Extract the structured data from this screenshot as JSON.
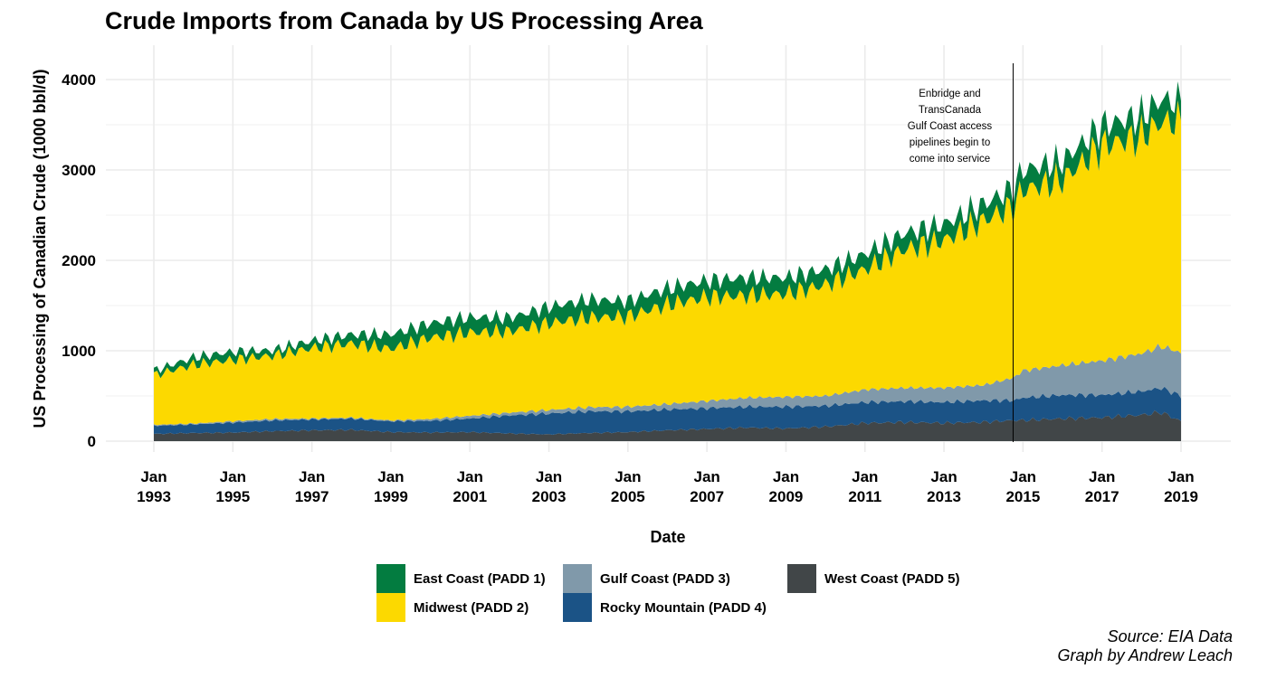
{
  "title": "Crude Imports from Canada by US Processing Area",
  "caption": {
    "line1": "Source: EIA Data",
    "line2": "Graph by Andrew Leach"
  },
  "chart_data": {
    "type": "area",
    "stacked": true,
    "xlabel": "Date",
    "ylabel": "US Processing of Canadian Crude (1000 bbl/d)",
    "xlim": [
      1993.0,
      2019.0
    ],
    "ylim": [
      0,
      4200
    ],
    "y_ticks": [
      0,
      1000,
      2000,
      3000,
      4000
    ],
    "x_ticks": [
      {
        "value": 1993,
        "label_top": "Jan",
        "label_bottom": "1993"
      },
      {
        "value": 1995,
        "label_top": "Jan",
        "label_bottom": "1995"
      },
      {
        "value": 1997,
        "label_top": "Jan",
        "label_bottom": "1997"
      },
      {
        "value": 1999,
        "label_top": "Jan",
        "label_bottom": "1999"
      },
      {
        "value": 2001,
        "label_top": "Jan",
        "label_bottom": "2001"
      },
      {
        "value": 2003,
        "label_top": "Jan",
        "label_bottom": "2003"
      },
      {
        "value": 2005,
        "label_top": "Jan",
        "label_bottom": "2005"
      },
      {
        "value": 2007,
        "label_top": "Jan",
        "label_bottom": "2007"
      },
      {
        "value": 2009,
        "label_top": "Jan",
        "label_bottom": "2009"
      },
      {
        "value": 2011,
        "label_top": "Jan",
        "label_bottom": "2011"
      },
      {
        "value": 2013,
        "label_top": "Jan",
        "label_bottom": "2013"
      },
      {
        "value": 2015,
        "label_top": "Jan",
        "label_bottom": "2015"
      },
      {
        "value": 2017,
        "label_top": "Jan",
        "label_bottom": "2017"
      },
      {
        "value": 2019,
        "label_top": "Jan",
        "label_bottom": "2019"
      }
    ],
    "grid": true,
    "legend_position": "bottom",
    "x": [
      1993.0,
      1994.0,
      1995.0,
      1996.0,
      1997.0,
      1998.0,
      1999.0,
      2000.0,
      2001.0,
      2002.0,
      2003.0,
      2004.0,
      2005.0,
      2006.0,
      2007.0,
      2008.0,
      2009.0,
      2010.0,
      2011.0,
      2012.0,
      2013.0,
      2014.0,
      2014.75,
      2015.0,
      2016.0,
      2017.0,
      2018.0,
      2018.5,
      2019.0
    ],
    "series": [
      {
        "name": "West Coast (PADD 5)",
        "color": "#414648",
        "values": [
          80,
          90,
          95,
          110,
          120,
          125,
          100,
          95,
          100,
          85,
          75,
          90,
          100,
          120,
          135,
          150,
          140,
          160,
          200,
          210,
          200,
          210,
          230,
          230,
          250,
          260,
          290,
          320,
          220
        ]
      },
      {
        "name": "Rocky Mountain (PADD 4)",
        "color": "#1b5386",
        "values": [
          90,
          95,
          110,
          120,
          120,
          125,
          120,
          130,
          150,
          200,
          230,
          240,
          230,
          230,
          230,
          230,
          240,
          230,
          230,
          230,
          230,
          240,
          220,
          250,
          260,
          250,
          260,
          270,
          280
        ]
      },
      {
        "name": "Gulf Coast (PADD 3)",
        "color": "#8099aa",
        "values": [
          10,
          10,
          15,
          15,
          10,
          10,
          10,
          20,
          30,
          30,
          40,
          45,
          50,
          60,
          80,
          100,
          110,
          110,
          140,
          150,
          160,
          170,
          250,
          300,
          330,
          380,
          420,
          460,
          480
        ]
      },
      {
        "name": "Midwest (PADD 2)",
        "color": "#fcd900",
        "values": [
          550,
          650,
          680,
          700,
          780,
          820,
          790,
          900,
          920,
          900,
          960,
          990,
          1000,
          1100,
          1150,
          1130,
          1140,
          1230,
          1330,
          1530,
          1630,
          1820,
          1900,
          2000,
          2050,
          2380,
          2400,
          2480,
          2550
        ]
      },
      {
        "name": "East Coast (PADD 1)",
        "color": "#037c40",
        "values": [
          50,
          80,
          90,
          60,
          80,
          100,
          160,
          160,
          170,
          150,
          180,
          200,
          170,
          180,
          180,
          200,
          180,
          170,
          170,
          180,
          180,
          180,
          200,
          220,
          210,
          220,
          230,
          250,
          220
        ]
      }
    ],
    "annotations": [
      {
        "x": 2014.75,
        "text_lines": [
          "Enbridge and",
          "TransCanada",
          "Gulf Coast access",
          "pipelines begin to",
          "come into service"
        ]
      }
    ]
  },
  "legend": {
    "items": [
      {
        "label": "East Coast (PADD 1)",
        "color": "#037c40"
      },
      {
        "label": "Midwest (PADD 2)",
        "color": "#fcd900"
      },
      {
        "label": "Gulf Coast (PADD 3)",
        "color": "#8099aa"
      },
      {
        "label": "Rocky Mountain (PADD 4)",
        "color": "#1b5386"
      },
      {
        "label": "West Coast (PADD 5)",
        "color": "#414648"
      }
    ]
  }
}
